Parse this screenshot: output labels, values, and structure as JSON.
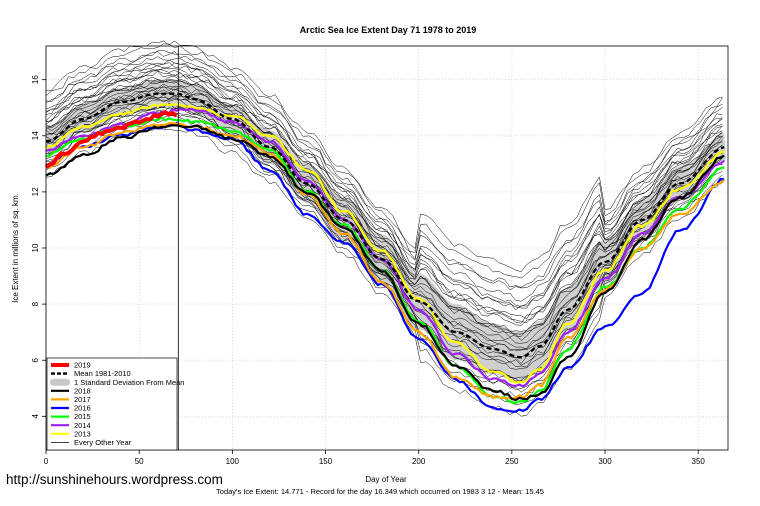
{
  "chart_data": {
    "type": "line",
    "title": "Arctic Sea Ice Extent Day 71 1978 to 2019",
    "xlabel": "Day of Year",
    "ylabel": "Ice Extent in millions of sq. km.",
    "xlim": [
      0,
      366
    ],
    "ylim": [
      2.8,
      17.2
    ],
    "x_ticks": [
      0,
      50,
      100,
      150,
      200,
      250,
      300,
      350
    ],
    "y_ticks": [
      4,
      6,
      8,
      10,
      12,
      14,
      16
    ],
    "current_day": 71,
    "legend_position": "bottom-left",
    "legend": [
      {
        "label": "2019",
        "color": "#ff0000",
        "style": "thick"
      },
      {
        "label": "Mean 1981-2010",
        "color": "#000000",
        "style": "dashed"
      },
      {
        "label": "1 Standard Deviation From Mean",
        "color": "#c8c8c8",
        "style": "band"
      },
      {
        "label": "2018",
        "color": "#000000",
        "style": "solid"
      },
      {
        "label": "2017",
        "color": "#ffa500",
        "style": "solid"
      },
      {
        "label": "2016",
        "color": "#0000ff",
        "style": "solid"
      },
      {
        "label": "2015",
        "color": "#00ff00",
        "style": "solid"
      },
      {
        "label": "2014",
        "color": "#a020f0",
        "style": "solid"
      },
      {
        "label": "2013",
        "color": "#ffff00",
        "style": "solid"
      },
      {
        "label": "Every Other Year",
        "color": "#000000",
        "style": "thin"
      }
    ],
    "mean_series": {
      "name": "Mean 1981-2010",
      "x": [
        0,
        20,
        40,
        60,
        70,
        80,
        100,
        120,
        140,
        160,
        180,
        200,
        220,
        240,
        255,
        265,
        280,
        300,
        320,
        340,
        365
      ],
      "y": [
        13.8,
        14.6,
        15.2,
        15.5,
        15.5,
        15.3,
        14.6,
        13.6,
        12.3,
        11.0,
        9.6,
        8.1,
        7.0,
        6.4,
        6.1,
        6.5,
        7.8,
        9.5,
        11.0,
        12.3,
        13.6
      ]
    },
    "std_band": {
      "x": [
        0,
        20,
        40,
        60,
        70,
        80,
        100,
        120,
        140,
        160,
        180,
        200,
        220,
        240,
        255,
        265,
        280,
        300,
        320,
        340,
        365
      ],
      "upper": [
        14.3,
        15.1,
        15.7,
        16.0,
        16.0,
        15.8,
        15.1,
        14.2,
        13.0,
        11.8,
        10.5,
        9.1,
        8.0,
        7.3,
        7.0,
        7.4,
        8.6,
        10.3,
        11.7,
        12.9,
        14.1
      ],
      "lower": [
        13.3,
        14.1,
        14.7,
        15.0,
        15.0,
        14.8,
        14.1,
        13.0,
        11.6,
        10.2,
        8.7,
        7.1,
        6.0,
        5.5,
        5.2,
        5.6,
        7.0,
        8.7,
        10.3,
        11.7,
        13.1
      ]
    },
    "series": [
      {
        "name": "2019",
        "color": "#ff0000",
        "x": [
          0,
          10,
          20,
          30,
          40,
          50,
          60,
          65,
          71
        ],
        "y": [
          12.9,
          13.4,
          13.8,
          14.1,
          14.3,
          14.5,
          14.7,
          14.8,
          14.77
        ]
      },
      {
        "name": "2018",
        "color": "#000000",
        "x": [
          0,
          20,
          40,
          60,
          70,
          80,
          100,
          120,
          140,
          160,
          180,
          200,
          220,
          240,
          255,
          265,
          280,
          300,
          320,
          340,
          365
        ],
        "y": [
          12.6,
          13.3,
          13.9,
          14.3,
          14.4,
          14.3,
          13.9,
          13.3,
          12.0,
          10.7,
          9.2,
          7.3,
          5.8,
          4.9,
          4.6,
          4.8,
          6.1,
          8.4,
          10.3,
          11.8,
          13.3
        ]
      },
      {
        "name": "2017",
        "color": "#ffa500",
        "x": [
          0,
          20,
          40,
          60,
          70,
          80,
          100,
          120,
          140,
          160,
          180,
          200,
          220,
          240,
          255,
          265,
          280,
          300,
          320,
          340,
          365
        ],
        "y": [
          12.9,
          13.6,
          14.1,
          14.4,
          14.4,
          14.3,
          14.0,
          13.4,
          11.9,
          10.5,
          8.8,
          7.0,
          5.4,
          4.7,
          4.7,
          5.1,
          6.8,
          8.5,
          10.0,
          11.2,
          12.4
        ]
      },
      {
        "name": "2016",
        "color": "#0000ff",
        "x": [
          0,
          20,
          40,
          60,
          70,
          80,
          100,
          120,
          140,
          160,
          180,
          200,
          220,
          240,
          255,
          265,
          280,
          300,
          320,
          340,
          365
        ],
        "y": [
          13.0,
          13.6,
          14.0,
          14.3,
          14.4,
          14.2,
          13.9,
          12.8,
          11.2,
          10.2,
          8.7,
          6.8,
          5.3,
          4.3,
          4.2,
          4.6,
          5.7,
          7.2,
          8.4,
          10.6,
          12.5
        ]
      },
      {
        "name": "2015",
        "color": "#00ff00",
        "x": [
          0,
          20,
          40,
          60,
          70,
          80,
          100,
          120,
          140,
          160,
          180,
          200,
          220,
          240,
          255,
          265,
          280,
          300,
          320,
          340,
          365
        ],
        "y": [
          13.3,
          13.9,
          14.3,
          14.6,
          14.6,
          14.5,
          14.2,
          13.5,
          12.0,
          10.8,
          9.2,
          7.4,
          5.8,
          4.7,
          4.5,
          4.9,
          6.4,
          8.6,
          10.0,
          11.4,
          12.9
        ]
      },
      {
        "name": "2014",
        "color": "#a020f0",
        "x": [
          0,
          20,
          40,
          60,
          70,
          80,
          100,
          120,
          140,
          160,
          180,
          200,
          220,
          240,
          255,
          265,
          280,
          300,
          320,
          340,
          365
        ],
        "y": [
          13.5,
          14.0,
          14.4,
          14.8,
          14.9,
          14.9,
          14.5,
          13.8,
          12.4,
          11.0,
          9.6,
          7.8,
          6.2,
          5.3,
          5.1,
          5.5,
          7.0,
          8.9,
          10.5,
          11.8,
          13.1
        ]
      },
      {
        "name": "2013",
        "color": "#ffff00",
        "x": [
          0,
          20,
          40,
          60,
          70,
          80,
          100,
          120,
          140,
          160,
          180,
          200,
          220,
          240,
          255,
          265,
          280,
          300,
          320,
          340,
          365
        ],
        "y": [
          13.6,
          14.3,
          14.8,
          15.1,
          15.1,
          15.0,
          14.7,
          14.0,
          12.8,
          11.3,
          9.9,
          8.2,
          6.6,
          5.6,
          5.2,
          5.7,
          7.3,
          9.2,
          10.8,
          12.1,
          13.4
        ]
      }
    ]
  },
  "watermark": "http://sunshinehours.wordpress.com",
  "footer": "Today's Ice Extent: 14.771  - Record for the day  16.349 which occurred on 1983 3 12  - Mean: 15.45"
}
